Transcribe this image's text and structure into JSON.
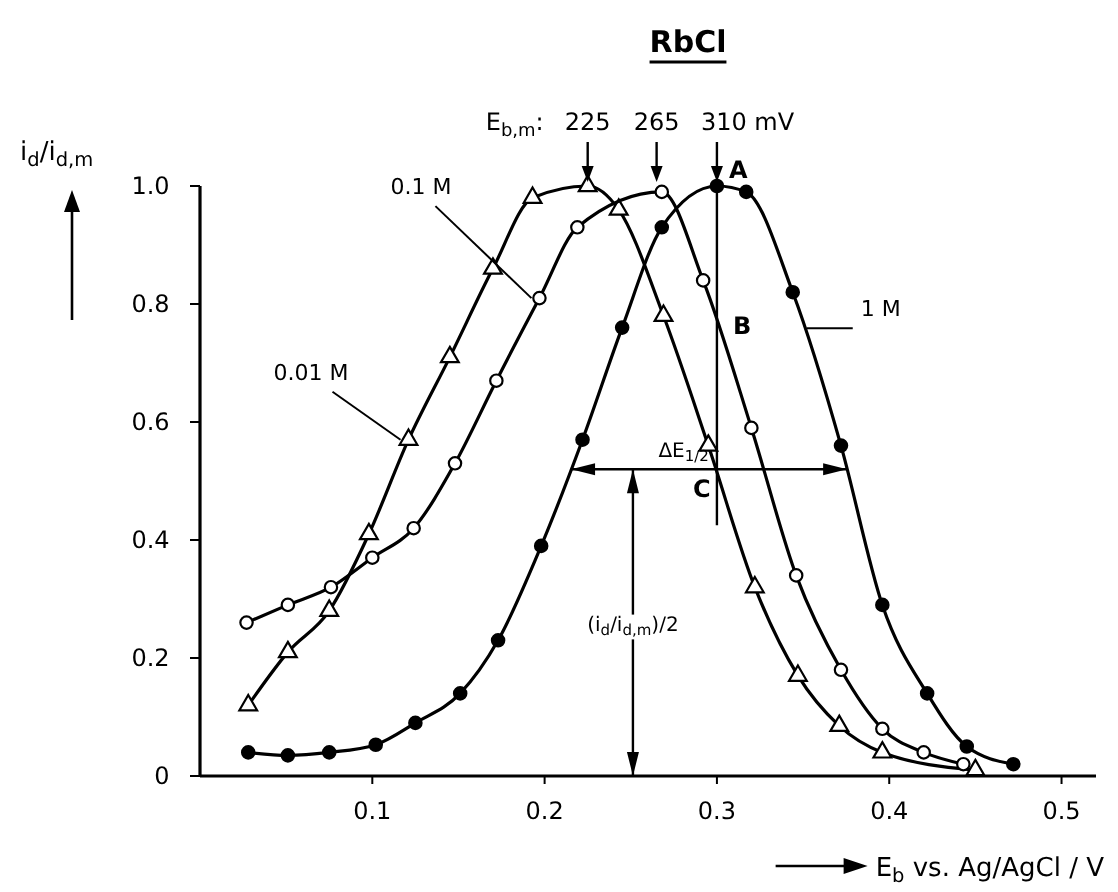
{
  "chart_data": {
    "type": "line",
    "title": "RbCl",
    "xlabel": "E$_{b}$ vs. Ag/AgCl / V",
    "ylabel": "i$_{d}$/i$_{d,m}$",
    "xlim": [
      0,
      0.52
    ],
    "ylim": [
      0,
      1.0
    ],
    "xticks": [
      0.1,
      0.2,
      0.3,
      0.4,
      0.5
    ],
    "yticks": [
      0,
      0.2,
      0.4,
      0.6,
      0.8,
      {
        "value": 1.0,
        "label": "1.0"
      }
    ],
    "grid": false,
    "line_style": "solid",
    "series": [
      {
        "name": "0.01 M",
        "color": "#000000",
        "marker": "triangle",
        "x": [
          0.028,
          0.051,
          0.075,
          0.098,
          0.121,
          0.145,
          0.17,
          0.193,
          0.225,
          0.243,
          0.269,
          0.295,
          0.322,
          0.347,
          0.371,
          0.396,
          0.45
        ],
        "values": [
          0.12,
          0.21,
          0.28,
          0.41,
          0.57,
          0.71,
          0.86,
          0.98,
          1.0,
          0.96,
          0.78,
          0.56,
          0.32,
          0.17,
          0.085,
          0.04,
          0.01
        ]
      },
      {
        "name": "0.1 M",
        "color": "#000000",
        "marker": "circle",
        "x": [
          0.027,
          0.051,
          0.076,
          0.1,
          0.124,
          0.148,
          0.172,
          0.197,
          0.219,
          0.268,
          0.292,
          0.32,
          0.346,
          0.372,
          0.396,
          0.42,
          0.443
        ],
        "values": [
          0.26,
          0.29,
          0.32,
          0.37,
          0.42,
          0.53,
          0.67,
          0.81,
          0.93,
          0.99,
          0.84,
          0.59,
          0.34,
          0.18,
          0.08,
          0.04,
          0.02
        ]
      },
      {
        "name": "1 M",
        "color": "#000000",
        "marker": "circle",
        "x": [
          0.028,
          0.051,
          0.075,
          0.102,
          0.125,
          0.151,
          0.173,
          0.198,
          0.222,
          0.245,
          0.268,
          0.3,
          0.317,
          0.344,
          0.372,
          0.396,
          0.422,
          0.445,
          0.472
        ],
        "values": [
          0.04,
          0.035,
          0.04,
          0.053,
          0.09,
          0.14,
          0.23,
          0.39,
          0.57,
          0.76,
          0.93,
          1.0,
          0.99,
          0.82,
          0.56,
          0.29,
          0.14,
          0.05,
          0.02
        ]
      }
    ],
    "annotations": [
      "E$_{b,m}$:",
      {
        "text": "225",
        "x": 0.225,
        "y": 1.0
      },
      {
        "text": "265",
        "x": 0.265,
        "y": 1.0
      },
      {
        "text": "310 mV",
        "x": 0.3,
        "y": 1.0
      },
      {
        "text": "A",
        "x": 0.3,
        "y": 1.0
      },
      {
        "text": "B",
        "x": 0.3,
        "y": 0.77
      },
      {
        "text": "C",
        "x": 0.3,
        "y": 0.52
      },
      {
        "text": "ΔE$_{1/2}$",
        "x": 0.3,
        "y": 0.52
      },
      "(i$_{d}$/i$_{d,m}$)/2"
    ]
  }
}
